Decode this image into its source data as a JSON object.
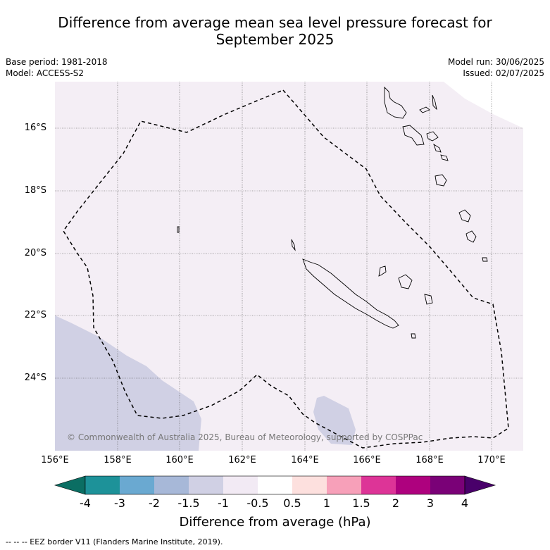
{
  "title_line1": "Difference from average mean sea level pressure forecast for",
  "title_line2": "September 2025",
  "meta_left": {
    "base_period": "Base period: 1981-2018",
    "model": "Model: ACCESS-S2"
  },
  "meta_right": {
    "model_run": "Model run: 30/06/2025",
    "issued": "Issued: 02/07/2025"
  },
  "lat_labels": [
    "16°S",
    "18°S",
    "20°S",
    "22°S",
    "24°S"
  ],
  "lon_labels": [
    "156°E",
    "158°E",
    "160°E",
    "162°E",
    "164°E",
    "166°E",
    "168°E",
    "170°E"
  ],
  "copyright": "© Commonwealth of Australia 2025, Bureau of Meteorology, supported by COSPPac",
  "colorbar": {
    "title": "Difference from average (hPa)",
    "ticks": [
      "-4",
      "-3",
      "-2",
      "-1.5",
      "-1",
      "-0.5",
      "0.5",
      "1",
      "1.5",
      "2",
      "3",
      "4"
    ],
    "colors": [
      "#0b6e63",
      "#1d9299",
      "#6aa9d1",
      "#a7b8d8",
      "#d0d0e4",
      "#f2eaf4",
      "#ffffff",
      "#fde0de",
      "#f7a0b9",
      "#dd3497",
      "#ae017e",
      "#7a0177",
      "#49006a"
    ]
  },
  "footer": "-- -- -- EEZ border V11 (Flanders Marine Institute, 2019)."
}
